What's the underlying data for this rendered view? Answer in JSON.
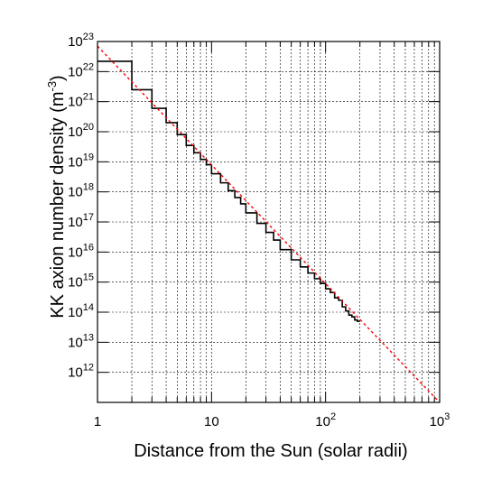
{
  "chart_data": {
    "type": "line",
    "title": "",
    "xlabel": "Distance from the Sun (solar radii)",
    "ylabel_main": "KK axion number density (m",
    "ylabel_exp": "-3",
    "ylabel_close": ")",
    "xscale": "log",
    "yscale": "log",
    "xlim": [
      1,
      1000
    ],
    "ylim": [
      100000000000.0,
      1e+23
    ],
    "grid": true,
    "x_ticks": [
      {
        "value": 1,
        "base": "1",
        "exp": ""
      },
      {
        "value": 10,
        "base": "10",
        "exp": ""
      },
      {
        "value": 100,
        "base": "10",
        "exp": "2"
      },
      {
        "value": 1000,
        "base": "10",
        "exp": "3"
      }
    ],
    "y_ticks": [
      {
        "value": 1000000000000.0,
        "base": "10",
        "exp": "12"
      },
      {
        "value": 10000000000000.0,
        "base": "10",
        "exp": "13"
      },
      {
        "value": 100000000000000.0,
        "base": "10",
        "exp": "14"
      },
      {
        "value": 1000000000000000.0,
        "base": "10",
        "exp": "15"
      },
      {
        "value": 1e+16,
        "base": "10",
        "exp": "16"
      },
      {
        "value": 1e+17,
        "base": "10",
        "exp": "17"
      },
      {
        "value": 1e+18,
        "base": "10",
        "exp": "18"
      },
      {
        "value": 1e+19,
        "base": "10",
        "exp": "19"
      },
      {
        "value": 1e+20,
        "base": "10",
        "exp": "20"
      },
      {
        "value": 1e+21,
        "base": "10",
        "exp": "21"
      },
      {
        "value": 1e+22,
        "base": "10",
        "exp": "22"
      },
      {
        "value": 1e+23,
        "base": "10",
        "exp": "23"
      }
    ],
    "series": [
      {
        "kind": "step-histogram",
        "color": "#000000",
        "bin_edges": [
          1,
          2,
          3,
          4,
          5,
          6,
          7,
          8,
          9,
          10,
          12,
          14,
          16,
          18,
          20,
          25,
          30,
          35,
          40,
          50,
          60,
          70,
          80,
          90,
          100,
          110,
          120,
          130,
          140,
          150,
          160,
          170,
          180,
          190,
          200
        ],
        "values": [
          2.2e+22,
          2.5e+21,
          6e+20,
          2e+20,
          8e+19,
          3.5e+19,
          2e+19,
          1.2e+19,
          8e+18,
          4e+18,
          2e+18,
          1.1e+18,
          6.5e+17,
          4e+17,
          2e+17,
          9e+16,
          4.5e+16,
          2.5e+16,
          1.2e+16,
          5500000000000000.0,
          3200000000000000.0,
          2000000000000000.0,
          1300000000000000.0,
          900000000000000.0,
          600000000000000.0,
          450000000000000.0,
          300000000000000.0,
          250000000000000.0,
          150000000000000.0,
          110000000000000.0,
          80000000000000.0,
          70000000000000.0,
          55000000000000.0,
          50000000000000.0
        ]
      },
      {
        "kind": "power-law-fit",
        "color": "#ff0000",
        "dashed": true,
        "x": [
          1,
          1000
        ],
        "y": [
          7e+22,
          100000000000.0
        ]
      }
    ]
  }
}
